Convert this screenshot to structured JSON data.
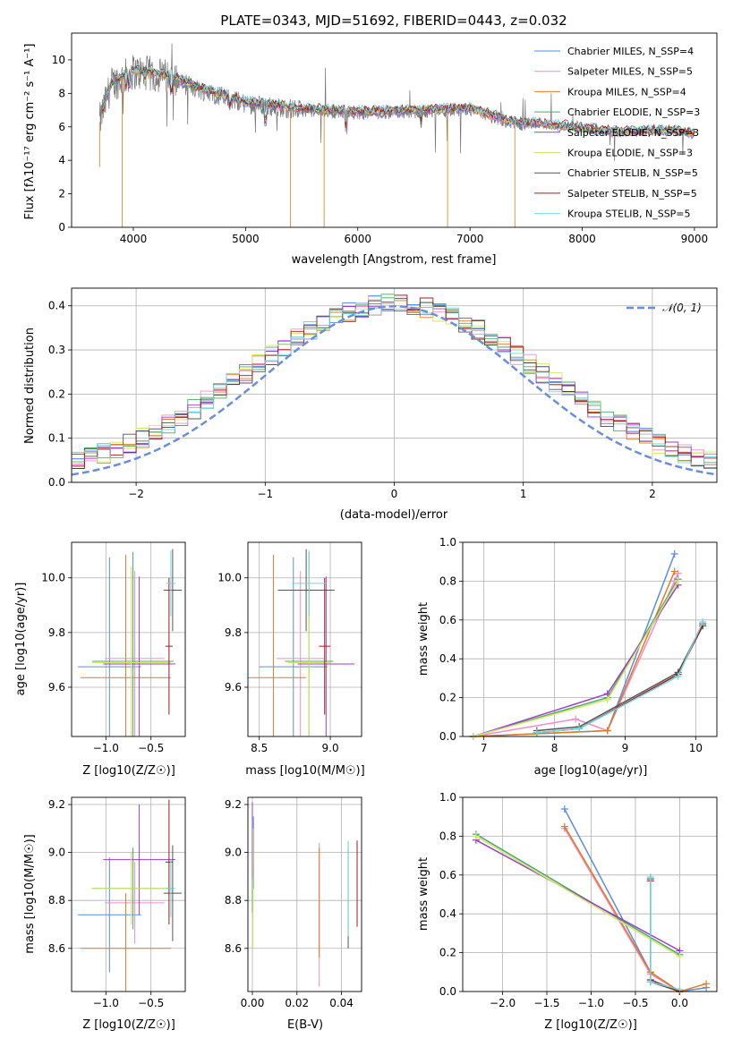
{
  "colors": [
    "#5b8ee0",
    "#f08cc8",
    "#e07b25",
    "#4ea86a",
    "#9a3fc8",
    "#d4e66a",
    "#555555",
    "#a31c1c",
    "#72d6dc"
  ],
  "chart_data": [
    {
      "id": "spectrum",
      "type": "line",
      "title": "PLATE=0343, MJD=51692, FIBERID=0443, z=0.032",
      "xlabel": "wavelength [Angstrom, rest frame]",
      "ylabel": "Flux [fλ10⁻¹⁷ erg cm⁻² s⁻¹ A⁻¹]",
      "xlim": [
        3450,
        9200
      ],
      "ylim": [
        0,
        11.6
      ],
      "xticks": [
        4000,
        5000,
        6000,
        7000,
        8000,
        9000
      ],
      "yticks": [
        0,
        2,
        4,
        6,
        8,
        10
      ],
      "grid": false,
      "legend_position": "top-right",
      "data_envelope": {
        "x": [
          3700,
          3800,
          4000,
          4300,
          4600,
          5000,
          5500,
          6000,
          6500,
          7000,
          7400,
          7800,
          8300,
          8800,
          9000
        ],
        "y": [
          6.3,
          8.5,
          9.3,
          9.0,
          8.2,
          7.4,
          7.0,
          6.8,
          6.9,
          7.0,
          6.2,
          6.0,
          5.6,
          5.7,
          5.5
        ]
      },
      "series": [
        {
          "name": "Chabrier MILES, N_SSP=4"
        },
        {
          "name": "Salpeter MILES, N_SSP=5"
        },
        {
          "name": "Kroupa MILES, N_SSP=4"
        },
        {
          "name": "Chabrier ELODIE, N_SSP=3"
        },
        {
          "name": "Salpeter ELODIE, N_SSP=3"
        },
        {
          "name": "Kroupa ELODIE, N_SSP=3"
        },
        {
          "name": "Chabrier STELIB, N_SSP=5"
        },
        {
          "name": "Salpeter STELIB, N_SSP=5"
        },
        {
          "name": "Kroupa STELIB, N_SSP=5"
        }
      ]
    },
    {
      "id": "residuals",
      "type": "line",
      "xlabel": "(data-model)/error",
      "ylabel": "Normed distribution",
      "xlim": [
        -2.5,
        2.5
      ],
      "ylim": [
        0,
        0.44
      ],
      "xticks": [
        -2,
        -1,
        0,
        1,
        2
      ],
      "yticks": [
        0.0,
        0.1,
        0.2,
        0.3,
        0.4
      ],
      "grid": true,
      "legend_position": "top-right",
      "reference_curve": {
        "name": "𝒩(0, 1)",
        "mean": 0,
        "sigma": 1
      },
      "hist_bin_width": 0.1
    },
    {
      "id": "age_vs_Z",
      "type": "scatter",
      "xlabel": "Z [log10(Z/Z☉)]",
      "ylabel": "age  [log10(age/yr)]",
      "xlim": [
        -1.38,
        -0.12
      ],
      "ylim": [
        9.42,
        10.13
      ],
      "xticks": [
        -1.0,
        -0.5
      ],
      "yticks": [
        9.6,
        9.8,
        10.0
      ],
      "grid": true,
      "points": [
        {
          "x": -0.96,
          "y": 9.675,
          "xerr": 0.35,
          "yerr": 0.4
        },
        {
          "x": -0.68,
          "y": 9.705,
          "xerr": 0.33,
          "yerr": 0.32
        },
        {
          "x": -0.78,
          "y": 9.635,
          "xerr": 0.5,
          "yerr": 0.45
        },
        {
          "x": -0.7,
          "y": 9.695,
          "xerr": 0.45,
          "yerr": 0.4
        },
        {
          "x": -0.63,
          "y": 9.685,
          "xerr": 0.4,
          "yerr": 0.32
        },
        {
          "x": -0.72,
          "y": 9.69,
          "xerr": 0.44,
          "yerr": 0.35
        },
        {
          "x": -0.26,
          "y": 9.955,
          "xerr": 0.1,
          "yerr": 0.15
        },
        {
          "x": -0.3,
          "y": 9.75,
          "xerr": 0.04,
          "yerr": 0.25
        },
        {
          "x": -0.28,
          "y": 9.98,
          "xerr": 0.05,
          "yerr": 0.12
        }
      ]
    },
    {
      "id": "age_vs_mass",
      "type": "scatter",
      "xlabel": "mass [log10(M/M☉)]",
      "ylabel": "",
      "xlim": [
        8.42,
        9.22
      ],
      "ylim": [
        9.42,
        10.13
      ],
      "xticks": [
        8.5,
        9.0
      ],
      "yticks": [
        9.6,
        9.8,
        10.0
      ],
      "grid": true,
      "points": [
        {
          "x": 8.74,
          "y": 9.675,
          "xerr": 0.24,
          "yerr": 0.4
        },
        {
          "x": 8.79,
          "y": 9.705,
          "xerr": 0.17,
          "yerr": 0.32
        },
        {
          "x": 8.6,
          "y": 9.635,
          "xerr": 0.23,
          "yerr": 0.45
        },
        {
          "x": 8.85,
          "y": 9.695,
          "xerr": 0.17,
          "yerr": 0.4
        },
        {
          "x": 8.97,
          "y": 9.685,
          "xerr": 0.2,
          "yerr": 0.32
        },
        {
          "x": 8.85,
          "y": 9.69,
          "xerr": 0.15,
          "yerr": 0.35
        },
        {
          "x": 8.83,
          "y": 9.955,
          "xerr": 0.2,
          "yerr": 0.15
        },
        {
          "x": 8.96,
          "y": 9.75,
          "xerr": 0.04,
          "yerr": 0.25
        },
        {
          "x": 8.85,
          "y": 9.98,
          "xerr": 0.12,
          "yerr": 0.12
        }
      ]
    },
    {
      "id": "weight_vs_age",
      "type": "line",
      "xlabel": "age  [log10(age/yr)]",
      "ylabel": "mass weight",
      "xlim": [
        6.7,
        10.3
      ],
      "ylim": [
        0,
        1.0
      ],
      "xticks": [
        7,
        8,
        9,
        10
      ],
      "yticks": [
        0.0,
        0.2,
        0.4,
        0.6,
        0.8,
        1.0
      ],
      "grid": true,
      "series": [
        {
          "x": [
            6.85,
            8.75,
            9.7
          ],
          "y": [
            0.0,
            0.03,
            0.94
          ]
        },
        {
          "x": [
            6.85,
            8.3,
            8.75,
            9.7,
            9.75
          ],
          "y": [
            0.0,
            0.09,
            0.03,
            0.8,
            0.84
          ]
        },
        {
          "x": [
            6.85,
            8.75,
            9.7
          ],
          "y": [
            0.0,
            0.03,
            0.85
          ]
        },
        {
          "x": [
            6.85,
            8.75,
            9.75
          ],
          "y": [
            0.0,
            0.2,
            0.81
          ]
        },
        {
          "x": [
            6.85,
            8.75,
            9.75
          ],
          "y": [
            0.0,
            0.22,
            0.78
          ]
        },
        {
          "x": [
            6.85,
            8.75,
            9.75
          ],
          "y": [
            0.0,
            0.19,
            0.8
          ]
        },
        {
          "x": [
            7.75,
            8.35,
            9.75,
            10.1
          ],
          "y": [
            0.03,
            0.05,
            0.33,
            0.58
          ]
        },
        {
          "x": [
            7.75,
            8.35,
            9.75,
            10.1
          ],
          "y": [
            0.02,
            0.04,
            0.32,
            0.57
          ]
        },
        {
          "x": [
            7.75,
            8.35,
            9.75,
            10.1
          ],
          "y": [
            0.02,
            0.04,
            0.31,
            0.59
          ]
        }
      ]
    },
    {
      "id": "mass_vs_Z",
      "type": "scatter",
      "xlabel": "Z [log10(Z/Z☉)]",
      "ylabel": "mass [log10(M/M☉)]",
      "xlim": [
        -1.38,
        -0.12
      ],
      "ylim": [
        8.42,
        9.23
      ],
      "xticks": [
        -1.0,
        -0.5
      ],
      "yticks": [
        8.6,
        8.8,
        9.0,
        9.2
      ],
      "grid": true,
      "points": [
        {
          "x": -0.96,
          "y": 8.74,
          "xerr": 0.35,
          "yerr": 0.24
        },
        {
          "x": -0.68,
          "y": 8.79,
          "xerr": 0.33,
          "yerr": 0.17
        },
        {
          "x": -0.78,
          "y": 8.6,
          "xerr": 0.5,
          "yerr": 0.23
        },
        {
          "x": -0.7,
          "y": 8.85,
          "xerr": 0.45,
          "yerr": 0.17
        },
        {
          "x": -0.63,
          "y": 8.97,
          "xerr": 0.4,
          "yerr": 0.23
        },
        {
          "x": -0.72,
          "y": 8.85,
          "xerr": 0.44,
          "yerr": 0.15
        },
        {
          "x": -0.26,
          "y": 8.83,
          "xerr": 0.1,
          "yerr": 0.2
        },
        {
          "x": -0.3,
          "y": 8.96,
          "xerr": 0.04,
          "yerr": 0.26
        },
        {
          "x": -0.28,
          "y": 8.85,
          "xerr": 0.05,
          "yerr": 0.12
        }
      ]
    },
    {
      "id": "mass_vs_ebv",
      "type": "scatter",
      "xlabel": "E(B-V)",
      "ylabel": "",
      "xlim": [
        -0.002,
        0.049
      ],
      "ylim": [
        8.42,
        9.23
      ],
      "xticks": [
        0.0,
        0.02,
        0.04
      ],
      "yticks": [
        8.6,
        8.8,
        9.0,
        9.2
      ],
      "grid": true,
      "points": [
        {
          "x": 0.0005,
          "y": 9.0,
          "yerr": 0.15
        },
        {
          "x": 0.03,
          "y": 8.74,
          "yerr": 0.3
        },
        {
          "x": 0.03,
          "y": 8.79,
          "yerr": 0.23
        },
        {
          "x": 0.0,
          "y": 8.85,
          "yerr": 0.1
        },
        {
          "x": 0.0,
          "y": 9.05,
          "yerr": 0.16
        },
        {
          "x": 0.0003,
          "y": 8.85,
          "yerr": 0.25
        },
        {
          "x": 0.043,
          "y": 8.81,
          "yerr": 0.21
        },
        {
          "x": 0.047,
          "y": 8.87,
          "yerr": 0.18
        },
        {
          "x": 0.043,
          "y": 8.85,
          "yerr": 0.2
        }
      ]
    },
    {
      "id": "weight_vs_Z",
      "type": "line",
      "xlabel": "Z [log10(Z/Z☉)]",
      "ylabel": "mass weight",
      "xlim": [
        -2.45,
        0.42
      ],
      "ylim": [
        0,
        1.0
      ],
      "xticks": [
        -2.0,
        -1.5,
        -1.0,
        -0.5,
        0.0
      ],
      "yticks": [
        0.0,
        0.2,
        0.4,
        0.6,
        0.8,
        1.0
      ],
      "grid": true,
      "series": [
        {
          "x": [
            -1.3,
            -0.33,
            0.0,
            0.3
          ],
          "y": [
            0.94,
            0.1,
            0.0,
            0.02
          ]
        },
        {
          "x": [
            -1.3,
            -0.33,
            0.0
          ],
          "y": [
            0.84,
            0.09,
            0.0
          ]
        },
        {
          "x": [
            -1.3,
            -0.33,
            0.0,
            0.3
          ],
          "y": [
            0.85,
            0.1,
            0.0,
            0.04
          ]
        },
        {
          "x": [
            -2.3,
            0.0
          ],
          "y": [
            0.81,
            0.19
          ]
        },
        {
          "x": [
            -2.3,
            0.0
          ],
          "y": [
            0.78,
            0.21
          ]
        },
        {
          "x": [
            -2.3,
            0.0
          ],
          "y": [
            0.8,
            0.18
          ]
        },
        {
          "x": [
            -0.33,
            -0.33,
            0.0
          ],
          "y": [
            0.58,
            0.05,
            0.0
          ]
        },
        {
          "x": [
            -0.33,
            -0.33,
            0.0
          ],
          "y": [
            0.57,
            0.06,
            0.0
          ]
        },
        {
          "x": [
            -0.33,
            -0.33,
            0.0
          ],
          "y": [
            0.59,
            0.05,
            0.01
          ]
        }
      ]
    }
  ]
}
